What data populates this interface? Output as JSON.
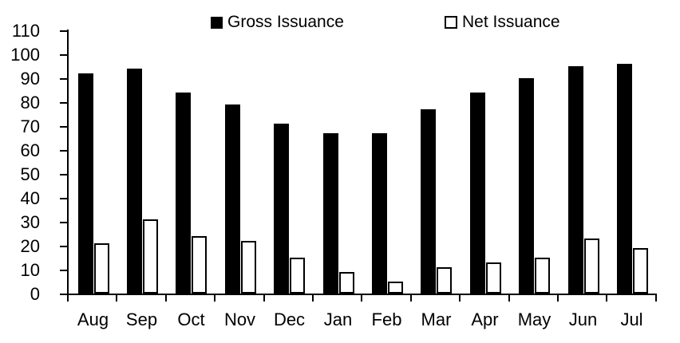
{
  "chart_data": {
    "type": "bar",
    "title": "",
    "xlabel": "",
    "ylabel": "",
    "categories": [
      "Aug",
      "Sep",
      "Oct",
      "Nov",
      "Dec",
      "Jan",
      "Feb",
      "Mar",
      "Apr",
      "May",
      "Jun",
      "Jul"
    ],
    "series": [
      {
        "name": "Gross Issuance",
        "fill": "#000000",
        "values": [
          92,
          94,
          84,
          79,
          71,
          67,
          67,
          77,
          84,
          90,
          95,
          96
        ]
      },
      {
        "name": "Net Issuance",
        "fill": "#ffffff",
        "stroke": "#000000",
        "values": [
          21,
          31,
          24,
          22,
          15,
          9,
          5,
          11,
          13,
          15,
          23,
          19
        ]
      }
    ],
    "ylim": [
      0,
      110
    ],
    "yticks": [
      0,
      10,
      20,
      30,
      40,
      50,
      60,
      70,
      80,
      90,
      100,
      110
    ],
    "grid": false,
    "legend_position": "top-inside",
    "axis_color": "#000000",
    "background": "#ffffff"
  }
}
